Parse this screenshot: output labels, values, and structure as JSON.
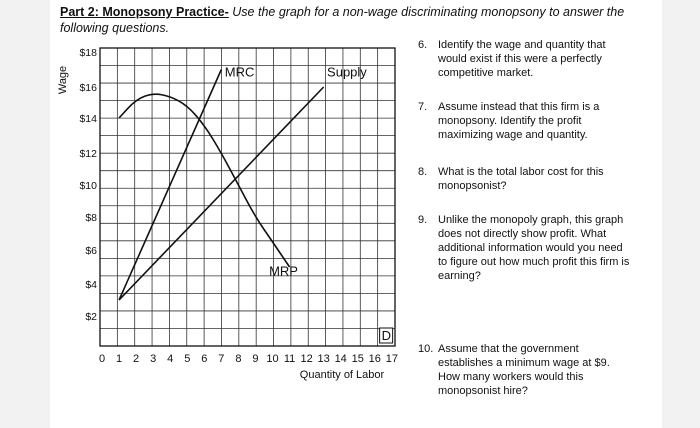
{
  "header": {
    "part_label": "Part 2: Monopsony Practice-",
    "instructions": " Use the graph for a non-wage discriminating monopsony to answer the following questions."
  },
  "chart_data": {
    "type": "line",
    "ylabel": "Wage",
    "xlabel": "Quantity of Labor",
    "x_ticks": [
      "0",
      "1",
      "2",
      "3",
      "4",
      "5",
      "6",
      "7",
      "8",
      "9",
      "10",
      "11",
      "12",
      "13",
      "14",
      "15",
      "16",
      "17"
    ],
    "y_ticks": [
      "$2",
      "$4",
      "$6",
      "$8",
      "$10",
      "$12",
      "$14",
      "$16",
      "$18"
    ],
    "xlim": [
      0,
      17
    ],
    "ylim": [
      1,
      18
    ],
    "grid": true,
    "series": [
      {
        "name": "MRC",
        "x": [
          1,
          7
        ],
        "y": [
          3,
          17
        ]
      },
      {
        "name": "Supply",
        "x": [
          1,
          13
        ],
        "y": [
          3,
          16
        ]
      },
      {
        "name": "MRP",
        "x": [
          1,
          2,
          3,
          4,
          5,
          6,
          7,
          8,
          9,
          10,
          11
        ],
        "y": [
          14,
          15.2,
          15.6,
          15.4,
          14.8,
          13.6,
          12,
          10,
          8,
          6.5,
          5
        ]
      }
    ],
    "annotations": [
      {
        "text": "MRC",
        "x": 7.2,
        "y": 16.6
      },
      {
        "text": "Supply",
        "x": 13.2,
        "y": 16.6
      },
      {
        "text": "MRP",
        "x": 9.8,
        "y": 4.5
      },
      {
        "text": "D",
        "x": 16.4,
        "y": 0.5
      }
    ]
  },
  "questions": [
    {
      "number": "6.",
      "text": "Identify the wage and quantity that would exist if this were a perfectly competitive market."
    },
    {
      "number": "7.",
      "text": "Assume instead that this firm is a monopsony. Identify the profit maximizing wage and quantity."
    },
    {
      "number": "8.",
      "text": "What is the total labor cost for this monopsonist?"
    },
    {
      "number": "9.",
      "text": "Unlike the monopoly graph, this graph does not directly show profit. What additional information would you need to figure out how much profit this firm is earning?"
    },
    {
      "number": "10.",
      "text": "Assume that the government establishes a minimum wage at $9. How many workers would this monopsonist hire?"
    }
  ]
}
